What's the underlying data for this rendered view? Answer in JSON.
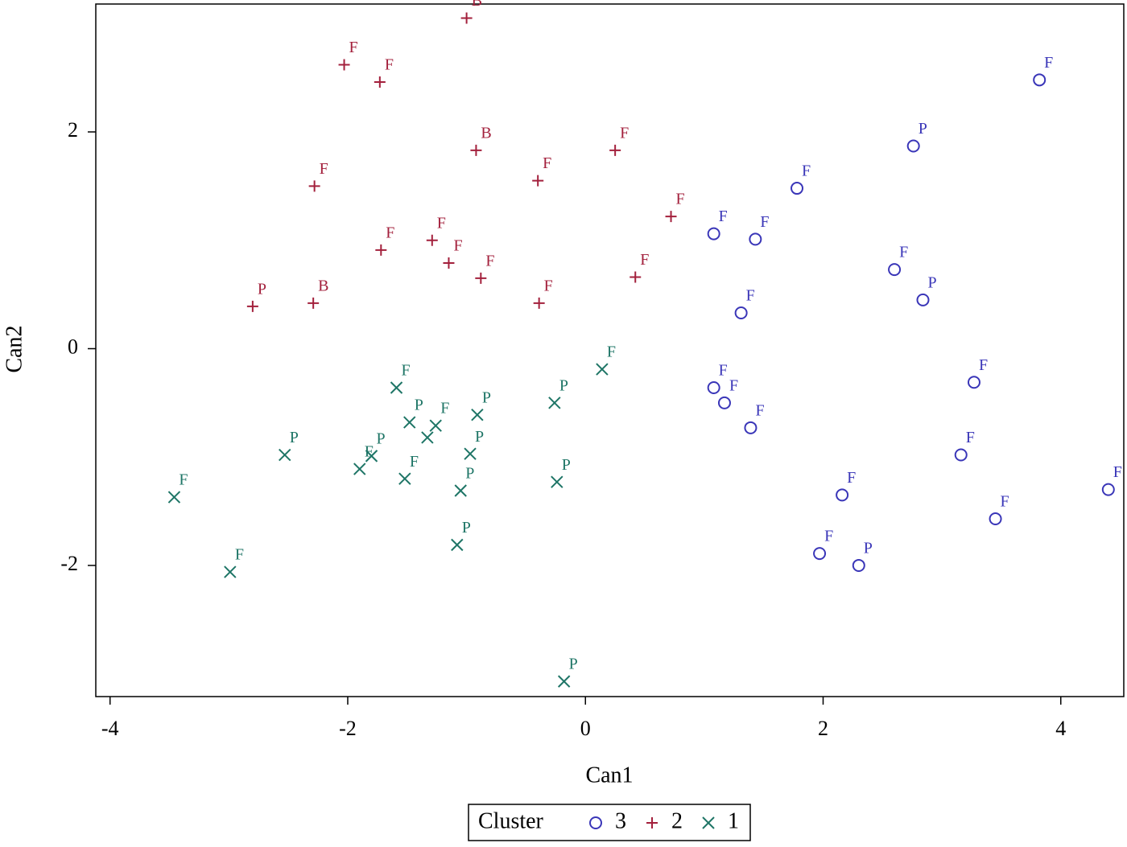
{
  "chart_data": {
    "type": "scatter",
    "x_label": "Can1",
    "y_label": "Can2",
    "xlim": [
      -4.12,
      4.53
    ],
    "ylim": [
      -3.21,
      3.18
    ],
    "xticks": [
      -4,
      -2,
      0,
      2,
      4
    ],
    "yticks": [
      -2,
      0,
      2
    ],
    "legend_title": "Cluster",
    "legend": "bottom",
    "series": [
      {
        "name": "3",
        "color": "#3a36b8",
        "marker": "circle",
        "x": [
          3.82,
          2.76,
          1.78,
          1.08,
          1.43,
          2.6,
          2.84,
          1.31,
          1.08,
          1.17,
          3.27,
          1.39,
          3.16,
          4.4,
          2.16,
          3.45,
          1.97,
          2.3
        ],
        "values": [
          2.48,
          1.87,
          1.48,
          1.06,
          1.01,
          0.73,
          0.45,
          0.33,
          -0.36,
          -0.5,
          -0.31,
          -0.73,
          -0.98,
          -1.3,
          -1.35,
          -1.57,
          -1.89,
          -2.0
        ],
        "point_labels": [
          "F",
          "P",
          "F",
          "F",
          "F",
          "F",
          "P",
          "F",
          "F",
          "F",
          "F",
          "F",
          "F",
          "F",
          "F",
          "F",
          "F",
          "P"
        ]
      },
      {
        "name": "2",
        "color": "#a3203c",
        "marker": "plus",
        "x": [
          -1.0,
          -2.03,
          -1.73,
          -0.92,
          0.25,
          -0.4,
          -2.28,
          0.72,
          -1.72,
          -1.29,
          -1.15,
          -0.88,
          0.42,
          -0.39,
          -2.29,
          -2.8
        ],
        "values": [
          3.05,
          2.62,
          2.46,
          1.83,
          1.83,
          1.55,
          1.5,
          1.22,
          0.91,
          1.0,
          0.79,
          0.65,
          0.66,
          0.42,
          0.42,
          0.39
        ],
        "point_labels": [
          "B",
          "F",
          "F",
          "B",
          "F",
          "F",
          "F",
          "F",
          "F",
          "F",
          "F",
          "F",
          "F",
          "F",
          "B",
          "P"
        ]
      },
      {
        "name": "1",
        "color": "#1e7566",
        "marker": "cross",
        "x": [
          0.14,
          -1.59,
          -0.26,
          -0.91,
          -1.48,
          -1.26,
          -1.33,
          -0.97,
          -2.53,
          -1.8,
          -1.9,
          -1.52,
          -1.05,
          -0.24,
          -3.46,
          -1.08,
          -2.99,
          -0.18
        ],
        "values": [
          -0.19,
          -0.36,
          -0.5,
          -0.61,
          -0.68,
          -0.71,
          -0.82,
          -0.97,
          -0.98,
          -0.99,
          -1.11,
          -1.2,
          -1.31,
          -1.23,
          -1.37,
          -1.81,
          -2.06,
          -3.07
        ],
        "point_labels": [
          "F",
          "F",
          "P",
          "P",
          "P",
          "F",
          null,
          "P",
          "P",
          "P",
          "F",
          "F",
          "P",
          "P",
          "F",
          "P",
          "F",
          "P"
        ]
      }
    ]
  }
}
